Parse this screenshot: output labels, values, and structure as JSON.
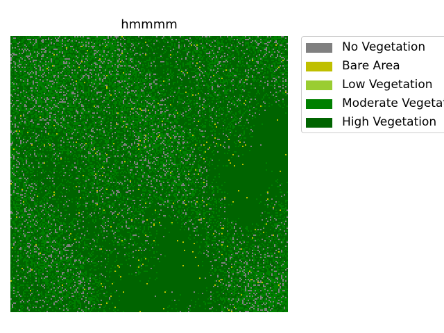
{
  "chart_data": {
    "type": "heatmap",
    "title": "hmmmm",
    "xlabel": "",
    "ylabel": "",
    "axes_visible": false,
    "grid": false,
    "legend_position": "outside-right",
    "classes": [
      {
        "name": "No Vegetation",
        "color": "#808080",
        "approx_fraction": 0.1
      },
      {
        "name": "Bare Area",
        "color": "#bfbf00",
        "approx_fraction": 0.01
      },
      {
        "name": "Low Vegetation",
        "color": "#9acd32",
        "approx_fraction": 0.0
      },
      {
        "name": "Moderate Vegetation",
        "color": "#008000",
        "approx_fraction": 0.39
      },
      {
        "name": "High Vegetation",
        "color": "#006400",
        "approx_fraction": 0.5
      }
    ]
  },
  "legend": {
    "items": [
      {
        "label": "No Vegetation",
        "color": "#808080"
      },
      {
        "label": "Bare Area",
        "color": "#bfbf00"
      },
      {
        "label": "Low Vegetation",
        "color": "#9acd32"
      },
      {
        "label": "Moderate Vegetation",
        "color": "#008000"
      },
      {
        "label": "High Vegetation",
        "color": "#006400"
      }
    ]
  }
}
